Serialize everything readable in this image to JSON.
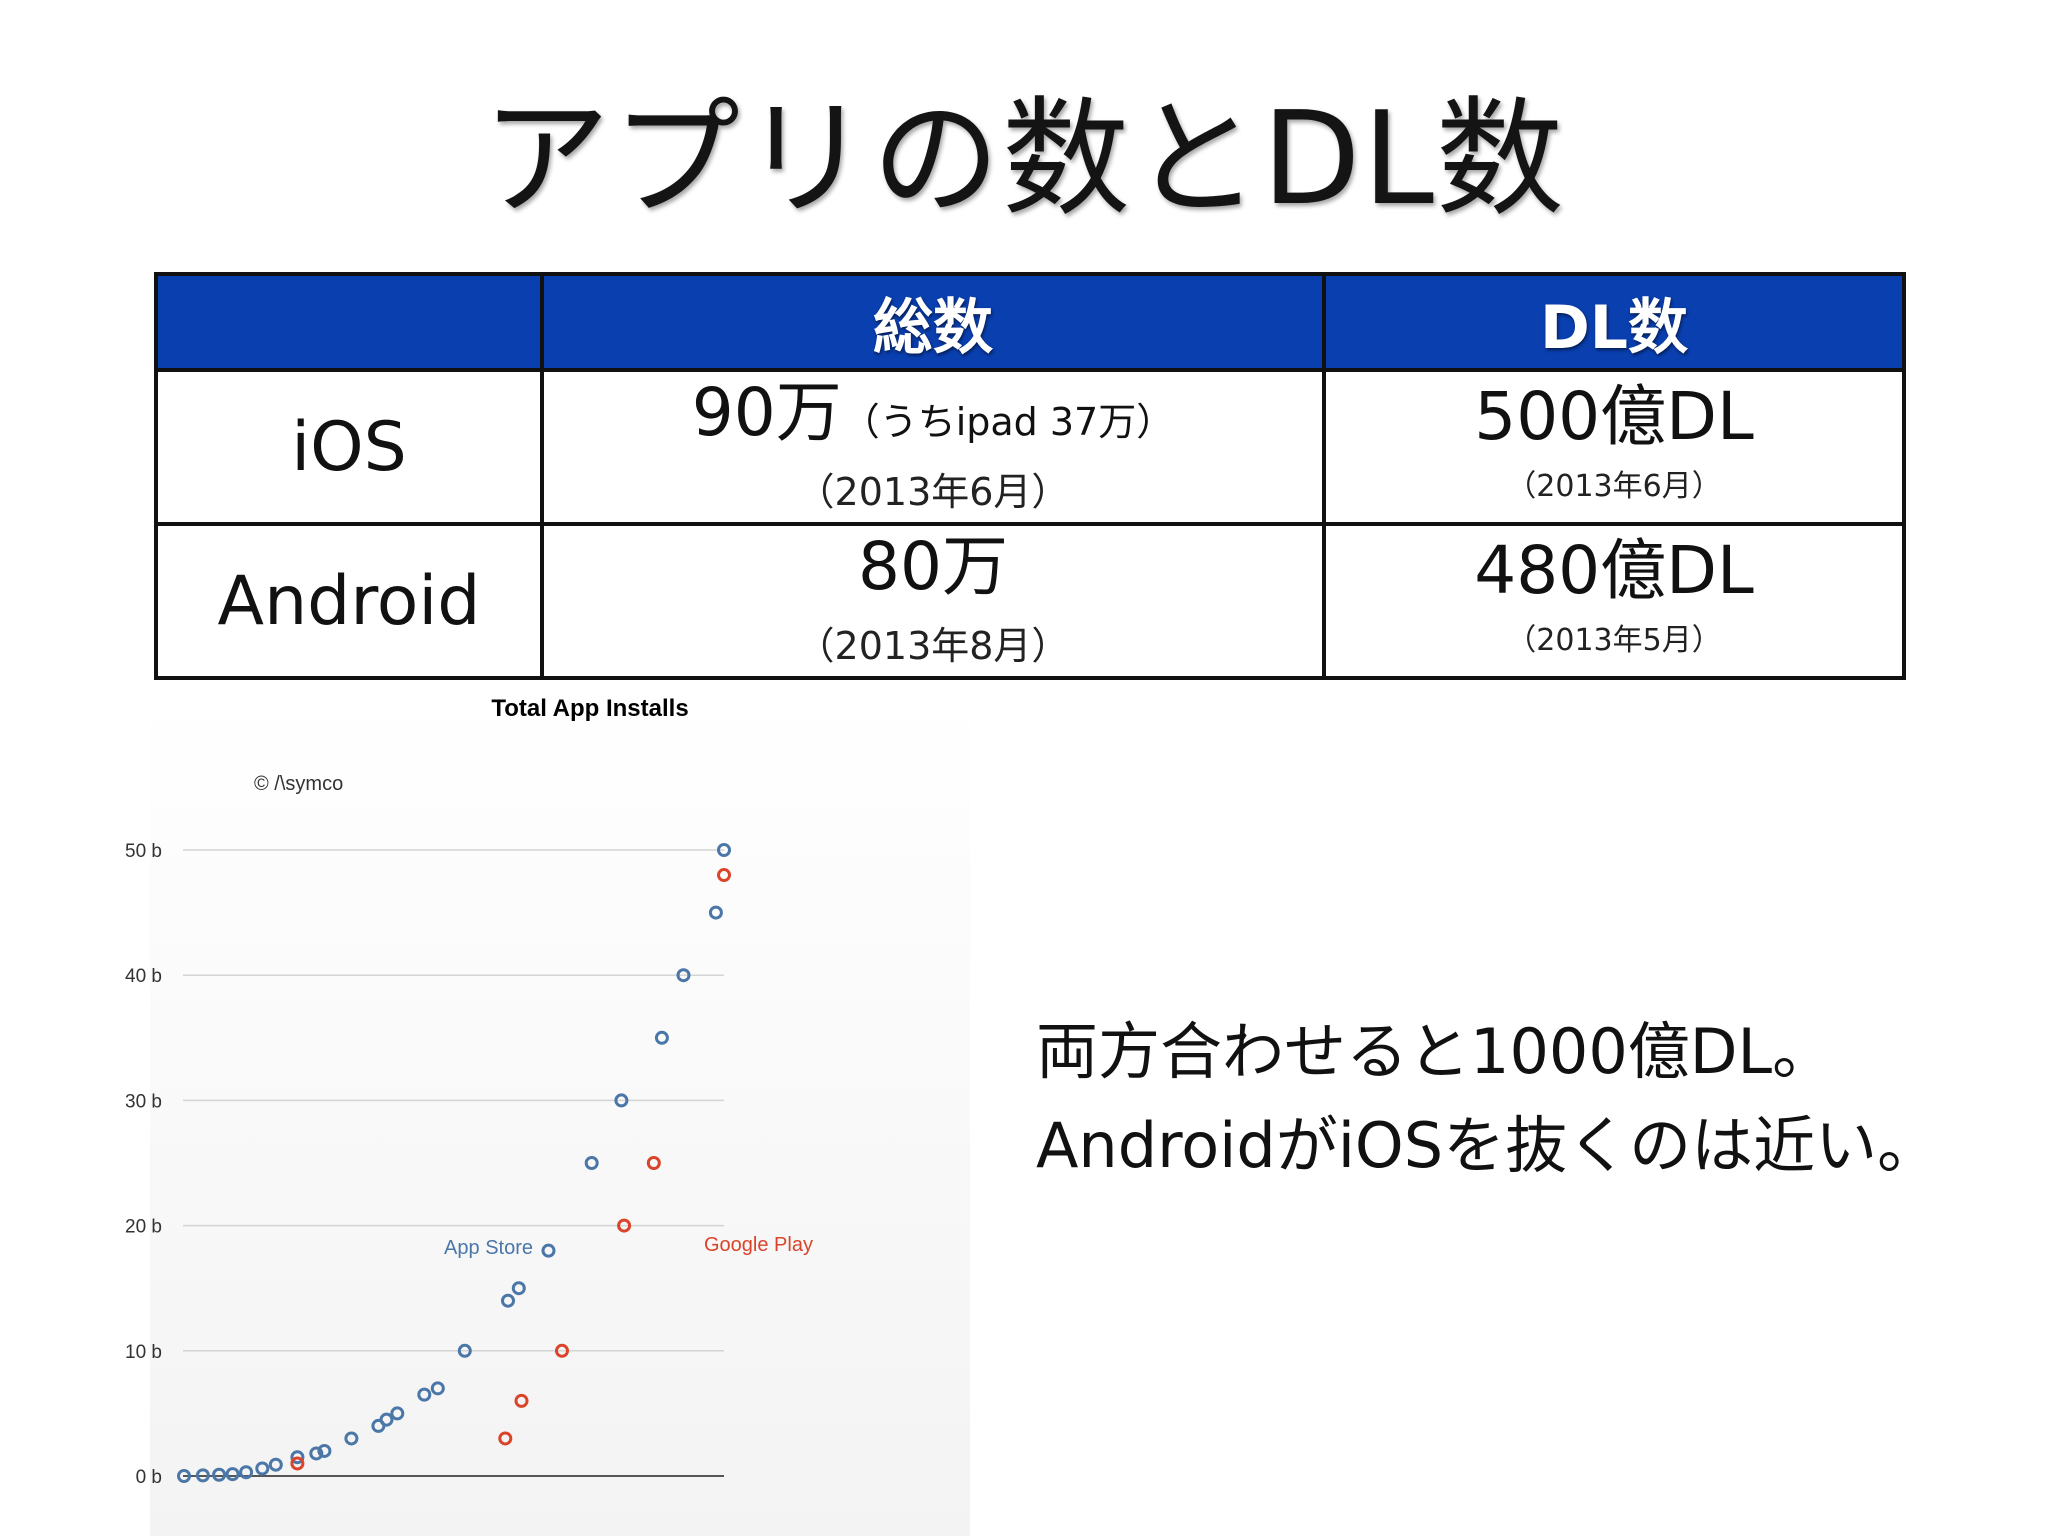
{
  "title": "アプリの数とDL数",
  "table": {
    "headers": [
      "",
      "総数",
      "DL数"
    ],
    "rows": [
      {
        "label": "iOS",
        "total": "90万",
        "total_note": "（うちipad 37万）",
        "total_date": "（2013年6月）",
        "downloads": "500億DL",
        "downloads_date": "（2013年6月）"
      },
      {
        "label": "Android",
        "total": "80万",
        "total_note": "",
        "total_date": "（2013年8月）",
        "downloads": "480億DL",
        "downloads_date": "（2013年5月）"
      }
    ]
  },
  "caption": {
    "line1": "両方合わせると1000億DL。",
    "line2": "AndroidがiOSを抜くのは近い。"
  },
  "chart_data": {
    "type": "scatter",
    "title": "Total App Installs",
    "copyright": "© /\\symco",
    "xlabel": "",
    "ylabel": "",
    "ylim": [
      0,
      50
    ],
    "yticks": [
      0,
      10,
      20,
      30,
      40,
      50
    ],
    "ytick_labels": [
      "0 b",
      "10 b",
      "20 b",
      "30 b",
      "40 b",
      "50 b"
    ],
    "x_index_range": [
      0,
      100
    ],
    "grid": true,
    "colors": {
      "App Store": "#4a76a8",
      "Google Play": "#d9442a",
      "grid": "#d4d4d4",
      "title": "#222222"
    },
    "series": [
      {
        "name": "App Store",
        "points": [
          [
            0,
            0
          ],
          [
            3.5,
            0.05
          ],
          [
            6.5,
            0.1
          ],
          [
            9,
            0.15
          ],
          [
            11.5,
            0.3
          ],
          [
            14.5,
            0.6
          ],
          [
            17,
            0.9
          ],
          [
            21,
            1.5
          ],
          [
            24.5,
            1.8
          ],
          [
            26,
            2.0
          ],
          [
            31,
            3.0
          ],
          [
            36,
            4.0
          ],
          [
            37.5,
            4.5
          ],
          [
            39.5,
            5.0
          ],
          [
            44.5,
            6.5
          ],
          [
            47,
            7.0
          ],
          [
            52,
            10.0
          ],
          [
            60,
            14.0
          ],
          [
            62,
            15.0
          ],
          [
            67.5,
            18.0
          ],
          [
            75.5,
            25.0
          ],
          [
            81,
            30.0
          ],
          [
            88.5,
            35.0
          ],
          [
            92.5,
            40.0
          ],
          [
            98.5,
            45.0
          ],
          [
            100,
            50.0
          ]
        ]
      },
      {
        "name": "Google Play",
        "points": [
          [
            21,
            1.0
          ],
          [
            59.5,
            3.0
          ],
          [
            62.5,
            6.0
          ],
          [
            70,
            10.0
          ],
          [
            81.5,
            20.0
          ],
          [
            87,
            25.0
          ],
          [
            100,
            48.0
          ]
        ]
      }
    ],
    "annotations": [
      {
        "text": "App Store",
        "series": "App Store"
      },
      {
        "text": "Google Play",
        "series": "Google Play"
      }
    ]
  }
}
